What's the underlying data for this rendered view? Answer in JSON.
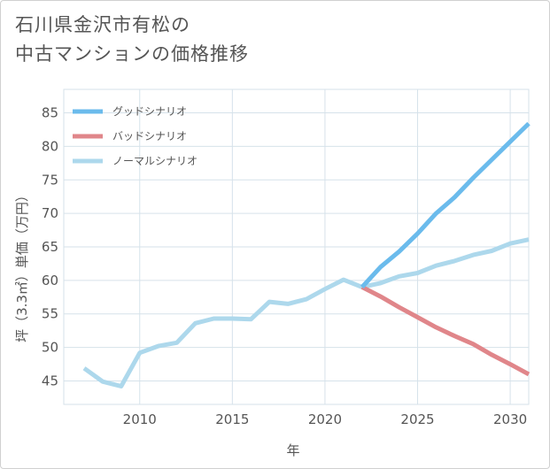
{
  "title_lines": [
    "石川県金沢市有松の",
    "中古マンションの価格推移"
  ],
  "chart_data": {
    "type": "line",
    "title": "石川県金沢市有松の中古マンションの価格推移",
    "xlabel": "年",
    "ylabel": "坪（3.3㎡）単価（万円）",
    "xlim": [
      2005.9,
      2031
    ],
    "ylim": [
      41.5,
      88.5
    ],
    "x_ticks": [
      2010,
      2015,
      2020,
      2025,
      2030
    ],
    "y_ticks": [
      45,
      50,
      55,
      60,
      65,
      70,
      75,
      80,
      85
    ],
    "legend_position": "top-left",
    "series": [
      {
        "name": "グッドシナリオ",
        "color": "#6bbbec",
        "x": [
          2022,
          2023,
          2024,
          2025,
          2026,
          2027,
          2028,
          2029,
          2030,
          2031
        ],
        "values": [
          59.0,
          62.0,
          64.3,
          67.0,
          70.0,
          72.4,
          75.3,
          78.0,
          80.7,
          83.4
        ]
      },
      {
        "name": "バッドシナリオ",
        "color": "#e0868a",
        "x": [
          2022,
          2023,
          2024,
          2025,
          2026,
          2027,
          2028,
          2029,
          2030,
          2031
        ],
        "values": [
          59.0,
          57.6,
          56.0,
          54.5,
          53.0,
          51.7,
          50.5,
          48.9,
          47.5,
          46.0
        ]
      },
      {
        "name": "ノーマルシナリオ",
        "color": "#add8ec",
        "x": [
          2007,
          2008,
          2009,
          2010,
          2011,
          2012,
          2013,
          2014,
          2015,
          2016,
          2017,
          2018,
          2019,
          2020,
          2021,
          2022,
          2023,
          2024,
          2025,
          2026,
          2027,
          2028,
          2029,
          2030,
          2031
        ],
        "values": [
          46.9,
          44.9,
          44.2,
          49.2,
          50.2,
          50.7,
          53.6,
          54.3,
          54.3,
          54.2,
          56.8,
          56.5,
          57.2,
          58.7,
          60.1,
          59.0,
          59.6,
          60.6,
          61.1,
          62.2,
          62.9,
          63.8,
          64.4,
          65.5,
          66.1
        ]
      }
    ]
  }
}
